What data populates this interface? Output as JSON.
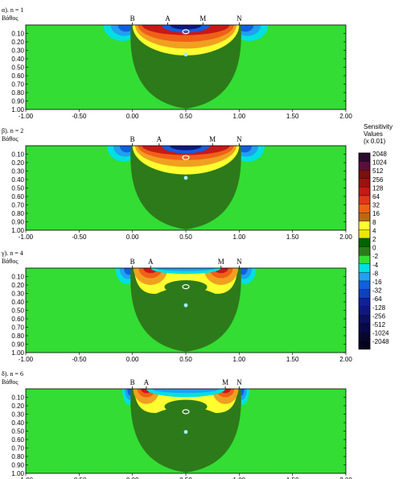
{
  "chart_data": {
    "type": "heatmap",
    "legend": {
      "title_lines": [
        "Sensitivity",
        "Values",
        "(x 0.01)"
      ],
      "levels": [
        "2048",
        "1024",
        "512",
        "256",
        "128",
        "64",
        "32",
        "16",
        "8",
        "4",
        "2",
        "0",
        "-2",
        "-4",
        "-8",
        "-16",
        "-32",
        "-64",
        "-128",
        "-256",
        "-512",
        "-1024",
        "-2048"
      ],
      "colors": [
        "#2b0a30",
        "#5a0f3a",
        "#7a1010",
        "#a01010",
        "#c81818",
        "#e03818",
        "#f06018",
        "#b86a10",
        "#ffff30",
        "#e8e800",
        "#006400",
        "#2d7a1a",
        "#33dd33",
        "#00e0e0",
        "#20a0f0",
        "#1060e0",
        "#1040c0",
        "#1020a0",
        "#101880",
        "#0a1060",
        "#080848",
        "#060630",
        "#04041e"
      ]
    },
    "panels": [
      {
        "title": "α). n = 1",
        "ylabel": "Βάθος",
        "electrodes": [
          {
            "label": "B",
            "x": 0.0
          },
          {
            "label": "A",
            "x": 0.33
          },
          {
            "label": "M",
            "x": 0.66
          },
          {
            "label": "N",
            "x": 1.0
          }
        ],
        "green_bulb_depth": 0.99,
        "yellow_depth": 0.36,
        "orange_depth": 0.28,
        "red_depth": 0.2,
        "deep_red_depth": 0.12,
        "top_blue_depth": 0.06,
        "hotspot_half_width": 0.5,
        "blue_flank_width": 0.17,
        "markers": [
          {
            "x": 0.5,
            "y": 0.08,
            "kind": "open"
          },
          {
            "x": 0.5,
            "y": 0.35,
            "kind": "filled"
          }
        ]
      },
      {
        "title": "β). n = 2",
        "ylabel": "Βάθος",
        "electrodes": [
          {
            "label": "B",
            "x": 0.0
          },
          {
            "label": "A",
            "x": 0.25
          },
          {
            "label": "M",
            "x": 0.75
          },
          {
            "label": "N",
            "x": 1.0
          }
        ],
        "green_bulb_depth": 0.99,
        "yellow_depth": 0.34,
        "orange_depth": 0.25,
        "red_depth": 0.17,
        "deep_red_depth": 0.11,
        "top_blue_depth": 0.06,
        "hotspot_half_width": 0.5,
        "blue_flank_width": 0.15,
        "markers": [
          {
            "x": 0.5,
            "y": 0.14,
            "kind": "open"
          },
          {
            "x": 0.5,
            "y": 0.38,
            "kind": "filled"
          }
        ]
      },
      {
        "title": "γ). n = 4",
        "ylabel": "Βάθος",
        "electrodes": [
          {
            "label": "B",
            "x": 0.0
          },
          {
            "label": "A",
            "x": 0.17
          },
          {
            "label": "M",
            "x": 0.83
          },
          {
            "label": "N",
            "x": 1.0
          }
        ],
        "green_bulb_depth": 0.99,
        "yellow_depth": 0.32,
        "orange_depth": 0.2,
        "red_depth": 0.12,
        "deep_red_depth": 0.06,
        "top_blue_depth": 0.05,
        "hotspot_half_width": 0.17,
        "blue_flank_width": 0.1,
        "markers": [
          {
            "x": 0.5,
            "y": 0.22,
            "kind": "open"
          },
          {
            "x": 0.5,
            "y": 0.44,
            "kind": "filled"
          }
        ]
      },
      {
        "title": "δ). n = 6",
        "ylabel": "Βάθος",
        "electrodes": [
          {
            "label": "B",
            "x": 0.0
          },
          {
            "label": "A",
            "x": 0.13
          },
          {
            "label": "M",
            "x": 0.87
          },
          {
            "label": "N",
            "x": 1.0
          }
        ],
        "green_bulb_depth": 0.99,
        "yellow_depth": 0.3,
        "orange_depth": 0.18,
        "red_depth": 0.1,
        "deep_red_depth": 0.05,
        "top_blue_depth": 0.07,
        "hotspot_half_width": 0.13,
        "blue_flank_width": 0.06,
        "markers": [
          {
            "x": 0.5,
            "y": 0.27,
            "kind": "open"
          },
          {
            "x": 0.5,
            "y": 0.51,
            "kind": "filled"
          }
        ]
      }
    ],
    "xlim": [
      -1.0,
      2.0
    ],
    "ylim": [
      0.0,
      1.0
    ],
    "x_ticks": [
      "-1.00",
      "-0.50",
      "0.00",
      "0.50",
      "1.00",
      "1.50",
      "2.00"
    ],
    "y_ticks": [
      "0.10",
      "0.20",
      "0.30",
      "0.40",
      "0.50",
      "0.60",
      "0.70",
      "0.80",
      "0.90",
      "1.00"
    ],
    "colors": {
      "background_green": "#33dd33",
      "bulb_green": "#2d7a1a",
      "dark_green": "#006400",
      "yellow": "#ffff30",
      "orange": "#f0a020",
      "red_orange": "#f06018",
      "red": "#e03818",
      "deep_red": "#c81818",
      "blue": "#1060e0",
      "light_blue": "#20a0f0",
      "cyan": "#00e0e0",
      "navy": "#101880"
    }
  }
}
